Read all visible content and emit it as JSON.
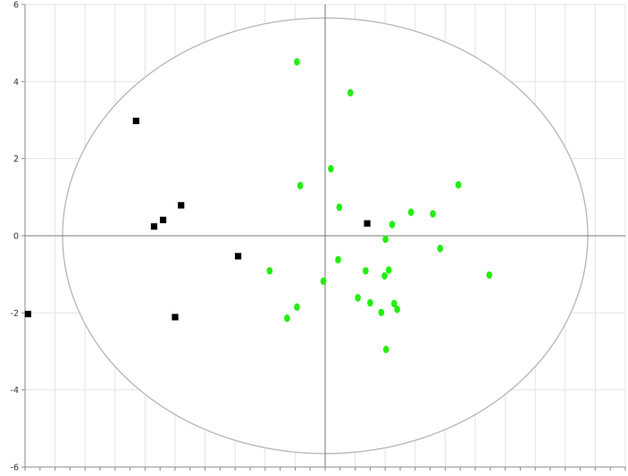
{
  "chart_data": {
    "type": "scatter",
    "title": "",
    "xlabel": "",
    "ylabel": "",
    "xlim": [
      -10,
      10
    ],
    "ylim": [
      -6,
      6
    ],
    "y_ticks": [
      6,
      4,
      2,
      0,
      -2,
      -4,
      -6
    ],
    "y_tick_labels": [
      "6",
      "4",
      "2",
      "0",
      "-2",
      "-4",
      "-6"
    ],
    "grid": true,
    "legend": "none",
    "confidence_ellipse": {
      "center": [
        0,
        0
      ],
      "rx": 8.75,
      "ry": 5.65
    },
    "series": [
      {
        "marker": "square",
        "color": "#000000",
        "points": [
          {
            "x": -9.9,
            "y": -2.03
          },
          {
            "x": -6.3,
            "y": 2.98
          },
          {
            "x": -5.7,
            "y": 0.24
          },
          {
            "x": -5.4,
            "y": 0.41
          },
          {
            "x": -5.0,
            "y": -2.11
          },
          {
            "x": -4.8,
            "y": 0.79
          },
          {
            "x": -2.9,
            "y": -0.53
          },
          {
            "x": 1.4,
            "y": 0.32
          }
        ]
      },
      {
        "marker": "circle",
        "color": "#22ee11",
        "points": [
          {
            "x": -1.85,
            "y": -0.91
          },
          {
            "x": -1.27,
            "y": -2.14
          },
          {
            "x": -0.94,
            "y": 4.51
          },
          {
            "x": -0.94,
            "y": -1.85
          },
          {
            "x": -0.83,
            "y": 1.3
          },
          {
            "x": -0.06,
            "y": -1.18
          },
          {
            "x": 0.19,
            "y": 1.74
          },
          {
            "x": 0.43,
            "y": -0.62
          },
          {
            "x": 0.47,
            "y": 0.74
          },
          {
            "x": 0.84,
            "y": 3.71
          },
          {
            "x": 1.09,
            "y": -1.61
          },
          {
            "x": 1.35,
            "y": -0.91
          },
          {
            "x": 1.5,
            "y": -1.74
          },
          {
            "x": 1.87,
            "y": -1.99
          },
          {
            "x": 1.98,
            "y": -1.04
          },
          {
            "x": 2.01,
            "y": -0.09
          },
          {
            "x": 2.03,
            "y": -2.95
          },
          {
            "x": 2.12,
            "y": -0.89
          },
          {
            "x": 2.23,
            "y": 0.29
          },
          {
            "x": 2.3,
            "y": -1.76
          },
          {
            "x": 2.4,
            "y": -1.91
          },
          {
            "x": 2.86,
            "y": 0.61
          },
          {
            "x": 3.59,
            "y": 0.57
          },
          {
            "x": 3.83,
            "y": -0.33
          },
          {
            "x": 4.44,
            "y": 1.32
          },
          {
            "x": 5.47,
            "y": -1.02
          }
        ]
      }
    ]
  }
}
